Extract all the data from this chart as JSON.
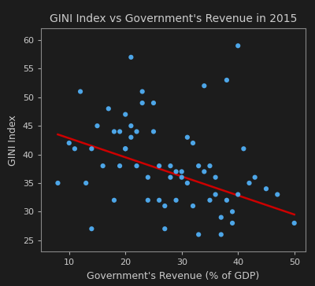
{
  "title": "GINI Index vs Government's Revenue in 2015",
  "xlabel": "Government's Revenue (% of GDP)",
  "ylabel": "GINI Index",
  "xlim": [
    5,
    52
  ],
  "ylim": [
    23,
    62
  ],
  "xticks": [
    10,
    20,
    30,
    40,
    50
  ],
  "yticks": [
    25,
    30,
    35,
    40,
    45,
    50,
    55,
    60
  ],
  "scatter_color": "#4da6e8",
  "line_color": "#cc0000",
  "scatter_x": [
    8,
    10,
    11,
    12,
    13,
    14,
    14,
    15,
    16,
    17,
    18,
    18,
    19,
    19,
    20,
    20,
    20,
    21,
    21,
    21,
    22,
    22,
    23,
    23,
    24,
    24,
    25,
    25,
    26,
    26,
    27,
    27,
    28,
    28,
    29,
    29,
    30,
    30,
    31,
    31,
    32,
    32,
    33,
    33,
    34,
    34,
    35,
    35,
    36,
    36,
    37,
    37,
    38,
    38,
    39,
    39,
    40,
    40,
    41,
    42,
    43,
    45,
    47,
    50
  ],
  "scatter_y": [
    35,
    42,
    41,
    51,
    35,
    41,
    27,
    45,
    38,
    48,
    44,
    32,
    44,
    38,
    41,
    41,
    47,
    57,
    45,
    43,
    44,
    38,
    51,
    49,
    36,
    32,
    49,
    44,
    38,
    32,
    27,
    31,
    38,
    36,
    37,
    32,
    37,
    36,
    43,
    35,
    42,
    31,
    38,
    26,
    52,
    37,
    38,
    32,
    33,
    36,
    29,
    26,
    53,
    32,
    30,
    28,
    59,
    33,
    41,
    35,
    36,
    34,
    33,
    28
  ],
  "line_x": [
    8,
    50
  ],
  "line_y": [
    43.5,
    29.5
  ],
  "title_fontsize": 10,
  "label_fontsize": 9,
  "tick_fontsize": 8,
  "scatter_size": 20,
  "line_width": 1.8,
  "fig_bg_color": "#1c1c1c",
  "axes_bg_color": "#1c1c1c",
  "text_color": "#cccccc",
  "tick_color": "#aaaaaa",
  "spine_color": "#888888"
}
